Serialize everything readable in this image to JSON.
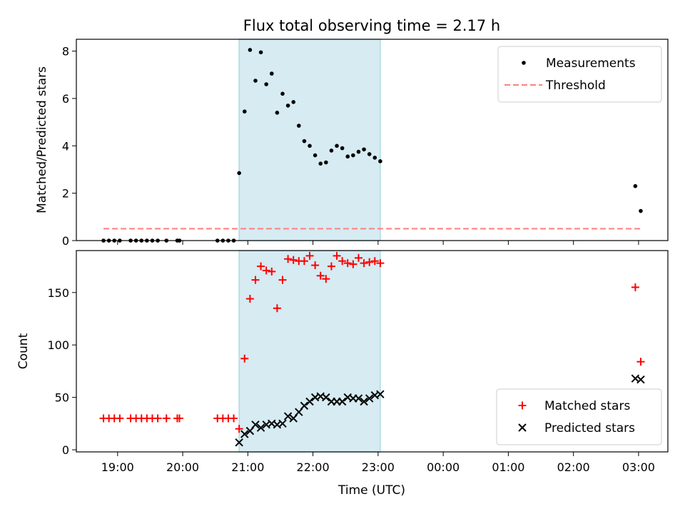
{
  "figure": {
    "title": "Flux total observing time = 2.17 h",
    "xlabel": "Time (UTC)",
    "shade_color": "#add8e6",
    "shade_range": [
      "20:52",
      "23:02"
    ]
  },
  "x_axis": {
    "ticks": [
      "19:00",
      "20:00",
      "21:00",
      "22:00",
      "23:00",
      "00:00",
      "01:00",
      "02:00",
      "03:00"
    ],
    "range": [
      "18:22",
      "03:27"
    ]
  },
  "chart_data": [
    {
      "type": "scatter",
      "ylabel": "Matched/Predicted stars",
      "ylim": [
        0,
        8.5
      ],
      "yticks": [
        0,
        2,
        4,
        6,
        8
      ],
      "legend": {
        "placement": "top-right",
        "entries": [
          "Measurements",
          "Threshold"
        ]
      },
      "threshold": {
        "name": "Threshold",
        "value": 0.5,
        "x_range": [
          "18:47",
          "03:02"
        ],
        "color": "#ff7f7f"
      },
      "series": [
        {
          "name": "Measurements",
          "color": "#000000",
          "points": [
            [
              "18:47",
              0
            ],
            [
              "18:52",
              0
            ],
            [
              "18:57",
              0
            ],
            [
              "19:02",
              0
            ],
            [
              "19:12",
              0
            ],
            [
              "19:17",
              0
            ],
            [
              "19:22",
              0
            ],
            [
              "19:27",
              0
            ],
            [
              "19:32",
              0
            ],
            [
              "19:37",
              0
            ],
            [
              "19:45",
              0
            ],
            [
              "19:55",
              0
            ],
            [
              "19:57",
              0
            ],
            [
              "20:32",
              0
            ],
            [
              "20:37",
              0
            ],
            [
              "20:42",
              0
            ],
            [
              "20:47",
              0
            ],
            [
              "20:52",
              2.85
            ],
            [
              "20:57",
              5.45
            ],
            [
              "21:02",
              8.05
            ],
            [
              "21:07",
              6.75
            ],
            [
              "21:12",
              7.95
            ],
            [
              "21:17",
              6.6
            ],
            [
              "21:22",
              7.05
            ],
            [
              "21:27",
              5.4
            ],
            [
              "21:32",
              6.2
            ],
            [
              "21:37",
              5.7
            ],
            [
              "21:42",
              5.85
            ],
            [
              "21:47",
              4.85
            ],
            [
              "21:52",
              4.2
            ],
            [
              "21:57",
              4.0
            ],
            [
              "22:02",
              3.6
            ],
            [
              "22:07",
              3.25
            ],
            [
              "22:12",
              3.3
            ],
            [
              "22:17",
              3.8
            ],
            [
              "22:22",
              4.0
            ],
            [
              "22:27",
              3.9
            ],
            [
              "22:32",
              3.55
            ],
            [
              "22:37",
              3.6
            ],
            [
              "22:42",
              3.75
            ],
            [
              "22:47",
              3.85
            ],
            [
              "22:52",
              3.65
            ],
            [
              "22:57",
              3.5
            ],
            [
              "23:02",
              3.35
            ],
            [
              "02:57",
              2.3
            ],
            [
              "03:02",
              1.25
            ]
          ]
        }
      ]
    },
    {
      "type": "scatter",
      "ylabel": "Count",
      "ylim": [
        -2,
        190
      ],
      "yticks": [
        0,
        50,
        100,
        150
      ],
      "legend": {
        "placement": "bottom-right",
        "entries": [
          "Matched stars",
          "Predicted stars"
        ]
      },
      "series": [
        {
          "name": "Matched stars",
          "marker": "plus",
          "color": "#ff0000",
          "points": [
            [
              "18:47",
              30
            ],
            [
              "18:52",
              30
            ],
            [
              "18:57",
              30
            ],
            [
              "19:02",
              30
            ],
            [
              "19:12",
              30
            ],
            [
              "19:17",
              30
            ],
            [
              "19:22",
              30
            ],
            [
              "19:27",
              30
            ],
            [
              "19:32",
              30
            ],
            [
              "19:37",
              30
            ],
            [
              "19:45",
              30
            ],
            [
              "19:55",
              30
            ],
            [
              "19:57",
              30
            ],
            [
              "20:32",
              30
            ],
            [
              "20:37",
              30
            ],
            [
              "20:42",
              30
            ],
            [
              "20:47",
              30
            ],
            [
              "20:52",
              20
            ],
            [
              "20:57",
              87
            ],
            [
              "21:02",
              144
            ],
            [
              "21:07",
              162
            ],
            [
              "21:12",
              175
            ],
            [
              "21:17",
              171
            ],
            [
              "21:22",
              170
            ],
            [
              "21:27",
              135
            ],
            [
              "21:32",
              162
            ],
            [
              "21:37",
              182
            ],
            [
              "21:42",
              181
            ],
            [
              "21:47",
              180
            ],
            [
              "21:52",
              180
            ],
            [
              "21:57",
              185
            ],
            [
              "22:02",
              176
            ],
            [
              "22:07",
              166
            ],
            [
              "22:12",
              163
            ],
            [
              "22:17",
              175
            ],
            [
              "22:22",
              185
            ],
            [
              "22:27",
              180
            ],
            [
              "22:32",
              178
            ],
            [
              "22:37",
              177
            ],
            [
              "22:42",
              183
            ],
            [
              "22:47",
              178
            ],
            [
              "22:52",
              179
            ],
            [
              "22:57",
              180
            ],
            [
              "23:02",
              178
            ],
            [
              "02:57",
              155
            ],
            [
              "03:02",
              84
            ]
          ]
        },
        {
          "name": "Predicted stars",
          "marker": "x",
          "color": "#000000",
          "points": [
            [
              "20:52",
              7
            ],
            [
              "20:57",
              15
            ],
            [
              "21:02",
              18
            ],
            [
              "21:07",
              24
            ],
            [
              "21:12",
              21
            ],
            [
              "21:17",
              24
            ],
            [
              "21:22",
              25
            ],
            [
              "21:27",
              24
            ],
            [
              "21:32",
              25
            ],
            [
              "21:37",
              32
            ],
            [
              "21:42",
              30
            ],
            [
              "21:47",
              36
            ],
            [
              "21:52",
              42
            ],
            [
              "21:57",
              46
            ],
            [
              "22:02",
              50
            ],
            [
              "22:07",
              51
            ],
            [
              "22:12",
              50
            ],
            [
              "22:17",
              46
            ],
            [
              "22:22",
              46
            ],
            [
              "22:27",
              46
            ],
            [
              "22:32",
              50
            ],
            [
              "22:37",
              49
            ],
            [
              "22:42",
              49
            ],
            [
              "22:47",
              46
            ],
            [
              "22:52",
              49
            ],
            [
              "22:57",
              52
            ],
            [
              "23:02",
              53
            ],
            [
              "02:57",
              68
            ],
            [
              "03:02",
              67
            ]
          ]
        }
      ]
    }
  ]
}
